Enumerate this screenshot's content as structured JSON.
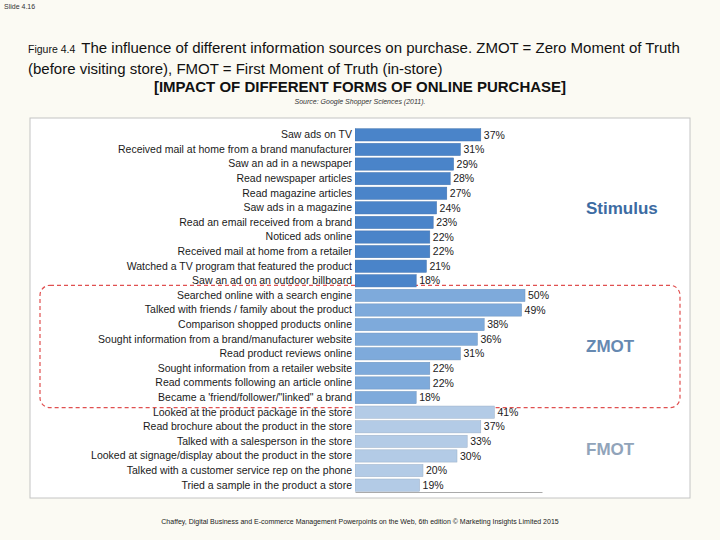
{
  "slide": "Slide 4.16",
  "figure": "Figure 4.4",
  "footer": "Chaffey, Digital Business and E-commerce Management Powerpoints on the Web, 6th edition © Marketing Insights Limited 2015",
  "chart_data": {
    "type": "bar",
    "orientation": "horizontal",
    "title": "The influence of different information sources on purchase. ZMOT = Zero Moment of Truth (before visiting store), FMOT = First Moment of Truth (in-store)",
    "subtitle": "[IMPACT OF DIFFERENT FORMS OF ONLINE PURCHASE]",
    "source": "Source: Google Shopper Sciences (2011).",
    "categories": [
      "Saw ads on TV",
      "Received mail at home from a brand manufacturer",
      "Saw an ad in a newspaper",
      "Read newspaper articles",
      "Read magazine articles",
      "Saw ads in a magazine",
      "Read an email received from a brand",
      "Noticed ads online",
      "Received mail at home from a retailer",
      "Watched a TV program that featured the product",
      "Saw an ad on an outdoor billboard",
      "Searched online with a search engine",
      "Talked with friends / family about the product",
      "Comparison shopped products online",
      "Sought information from a brand/manufacturer website",
      "Read product reviews online",
      "Sought information from a retailer website",
      "Read comments following an article online",
      "Became a 'friend/follower/\"linked\" a brand",
      "Looked at the product package in the store",
      "Read brochure about the product in the store",
      "Talked with a salesperson in the store",
      "Looked at signage/display about the product in the store",
      "Talked with a customer service rep on the phone",
      "Tried a sample in the product a store"
    ],
    "series": [
      {
        "name": "Stimulus",
        "color": "#4a84c9",
        "values": [
          37,
          31,
          29,
          28,
          27,
          24,
          23,
          22,
          22,
          21,
          18,
          null,
          null,
          null,
          null,
          null,
          null,
          null,
          null,
          null,
          null,
          null,
          null,
          null,
          null
        ],
        "value_labels": [
          "37%",
          "31%",
          "29%",
          "28%",
          "27%",
          "24%",
          "23%",
          "22%",
          "22%",
          "21%",
          "18%",
          null,
          null,
          null,
          null,
          null,
          null,
          null,
          null,
          null,
          null,
          null,
          null,
          null,
          null
        ]
      },
      {
        "name": "ZMOT",
        "color": "#7eaadb",
        "values": [
          null,
          null,
          null,
          null,
          null,
          null,
          null,
          null,
          null,
          null,
          null,
          50,
          49,
          38,
          36,
          31,
          22,
          22,
          18,
          null,
          null,
          null,
          null,
          null,
          null
        ],
        "value_labels": [
          null,
          null,
          null,
          null,
          null,
          null,
          null,
          null,
          null,
          null,
          null,
          "50%",
          "49%",
          "38%",
          "36%",
          "31%",
          "22%",
          "22%",
          "18%",
          null,
          null,
          null,
          null,
          null,
          null
        ]
      },
      {
        "name": "FMOT",
        "color": "#b3cbe6",
        "values": [
          null,
          null,
          null,
          null,
          null,
          null,
          null,
          null,
          null,
          null,
          null,
          null,
          null,
          null,
          null,
          null,
          null,
          null,
          null,
          41,
          37,
          33,
          30,
          20,
          19
        ],
        "value_labels": [
          null,
          null,
          null,
          null,
          null,
          null,
          null,
          null,
          null,
          null,
          null,
          null,
          null,
          null,
          null,
          null,
          null,
          null,
          null,
          "41%",
          "37%",
          "33%",
          "30%",
          "20%",
          "19%"
        ]
      }
    ],
    "xlim": [
      0,
      55
    ],
    "tick_labels": "y",
    "data_labels": true,
    "legend": "right"
  }
}
